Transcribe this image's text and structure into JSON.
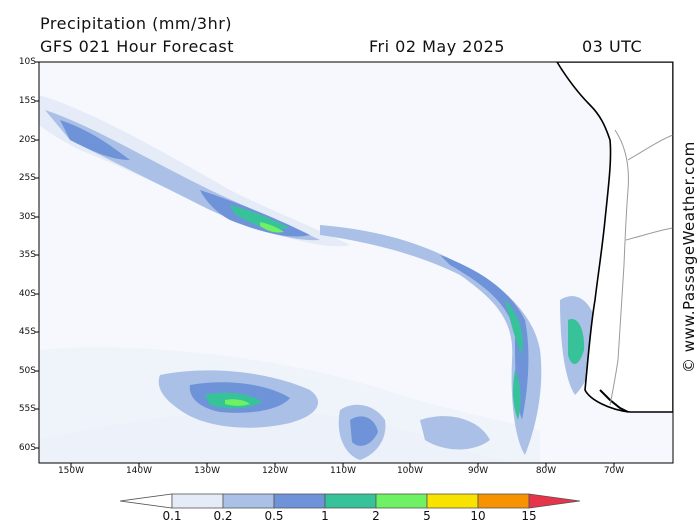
{
  "header": {
    "title": "Precipitation (mm/3hr)",
    "model": "GFS 021 Hour Forecast",
    "date": "Fri 02 May 2025",
    "time": "03 UTC"
  },
  "lat_labels": [
    "10S",
    "15S",
    "20S",
    "25S",
    "30S",
    "35S",
    "40S",
    "45S",
    "50S",
    "55S",
    "60S"
  ],
  "lon_labels": [
    "150W",
    "140W",
    "130W",
    "120W",
    "110W",
    "100W",
    "90W",
    "80W",
    "70W"
  ],
  "colorbar": {
    "labels": [
      "0.1",
      "0.2",
      "0.5",
      "1",
      "2",
      "5",
      "10",
      "15"
    ],
    "colors": [
      "#e6ecf7",
      "#aac0e6",
      "#6f93d9",
      "#37c29a",
      "#6ef263",
      "#f7e200",
      "#f79200",
      "#e8344a"
    ]
  },
  "credit": "© www.PassageWeather.com"
}
